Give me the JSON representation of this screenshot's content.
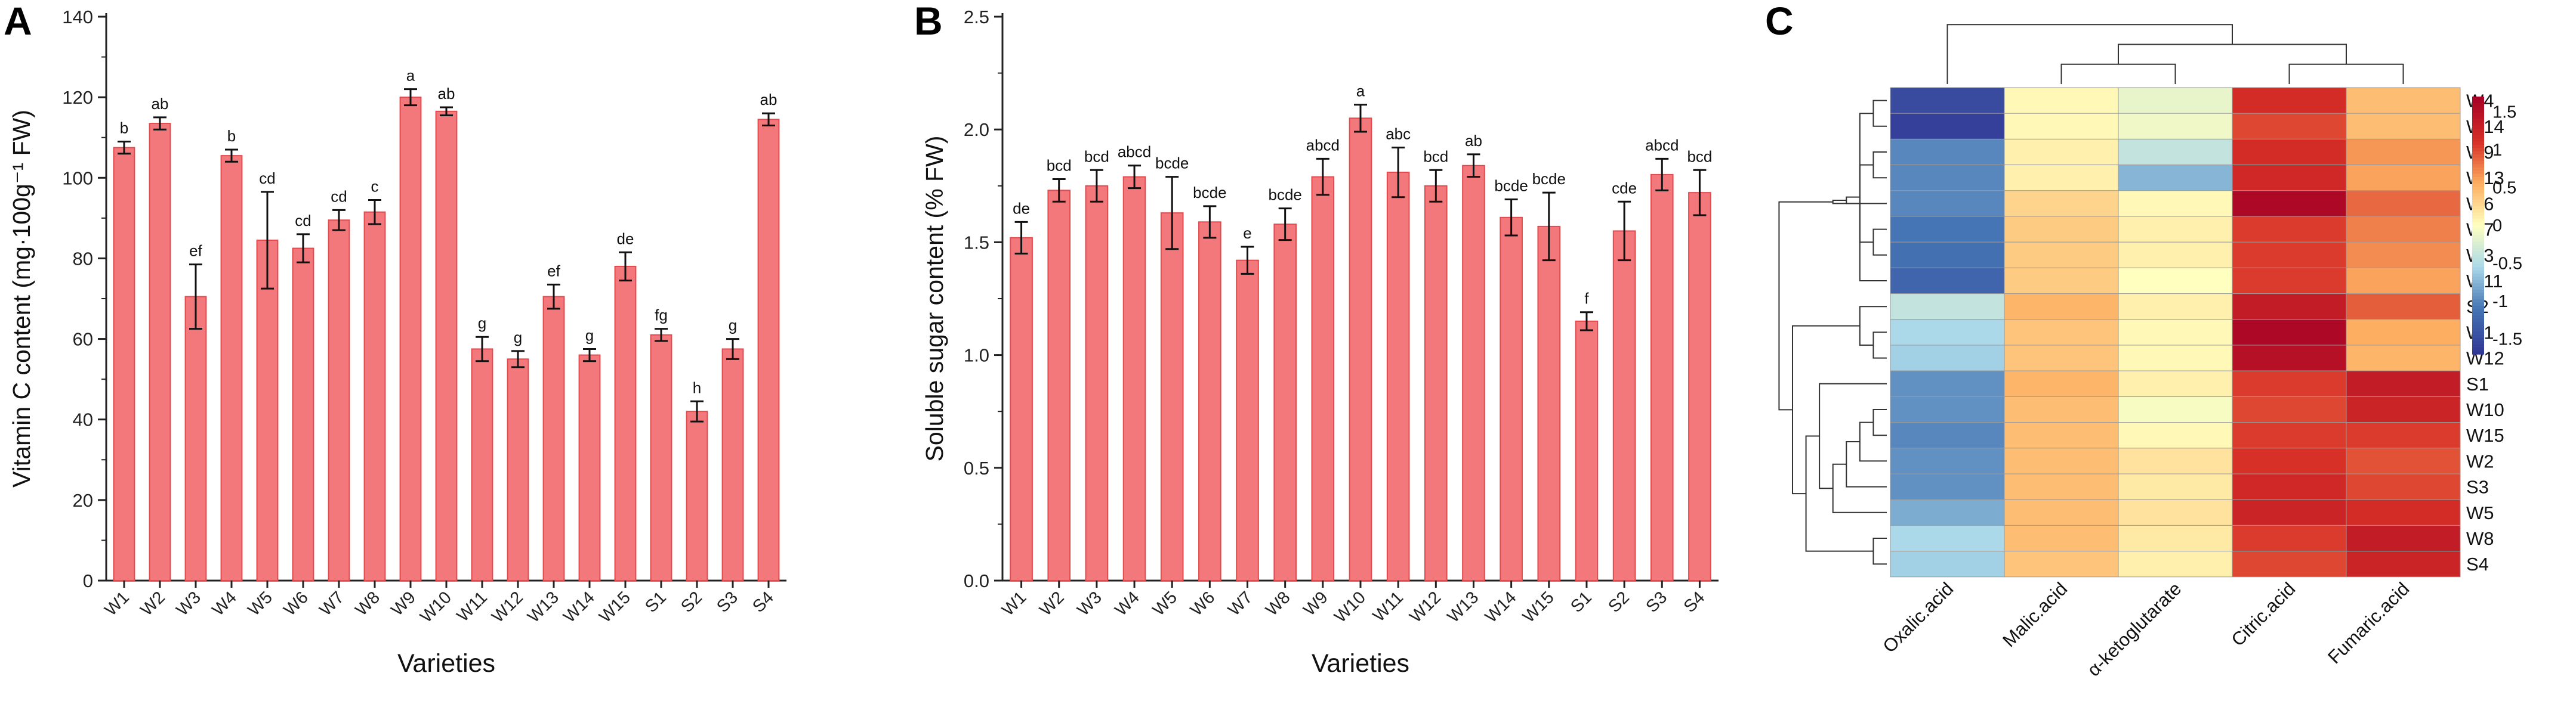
{
  "panels": {
    "a": "A",
    "b": "B",
    "c": "C"
  },
  "colors": {
    "bar_fill": "#f3787b",
    "bar_edge": "#e34a4e"
  },
  "chart_data": [
    {
      "type": "bar",
      "panel": "A",
      "xlabel": "Varieties",
      "ylabel": "Vitamin C content (mg·100g⁻¹ FW)",
      "ylim": [
        0,
        140
      ],
      "yticks": [
        0,
        20,
        40,
        60,
        80,
        100,
        120,
        140
      ],
      "categories": [
        "W1",
        "W2",
        "W3",
        "W4",
        "W5",
        "W6",
        "W7",
        "W8",
        "W9",
        "W10",
        "W11",
        "W12",
        "W13",
        "W14",
        "W15",
        "S1",
        "S2",
        "S3",
        "S4"
      ],
      "values": [
        107.5,
        113.5,
        70.5,
        105.5,
        84.5,
        82.5,
        89.5,
        91.5,
        120.0,
        116.5,
        57.5,
        55.0,
        70.5,
        56.0,
        78.0,
        61.0,
        42.0,
        57.5,
        114.5
      ],
      "errors": [
        1.5,
        1.5,
        8.0,
        1.5,
        12.0,
        3.5,
        2.5,
        3.0,
        2.0,
        1.0,
        3.0,
        2.0,
        3.0,
        1.5,
        3.5,
        1.5,
        2.5,
        2.5,
        1.5
      ],
      "labels": [
        "b",
        "ab",
        "ef",
        "b",
        "cd",
        "cd",
        "cd",
        "c",
        "a",
        "ab",
        "g",
        "g",
        "ef",
        "g",
        "de",
        "fg",
        "h",
        "g",
        "ab"
      ]
    },
    {
      "type": "bar",
      "panel": "B",
      "xlabel": "Varieties",
      "ylabel": "Soluble sugar content (% FW)",
      "ylim": [
        0,
        2.5
      ],
      "yticks": [
        0.0,
        0.5,
        1.0,
        1.5,
        2.0,
        2.5
      ],
      "categories": [
        "W1",
        "W2",
        "W3",
        "W4",
        "W5",
        "W6",
        "W7",
        "W8",
        "W9",
        "W10",
        "W11",
        "W12",
        "W13",
        "W14",
        "W15",
        "S1",
        "S2",
        "S3",
        "S4"
      ],
      "values": [
        1.52,
        1.73,
        1.75,
        1.79,
        1.63,
        1.59,
        1.42,
        1.58,
        1.79,
        2.05,
        1.81,
        1.75,
        1.84,
        1.61,
        1.57,
        1.15,
        1.55,
        1.8,
        1.72
      ],
      "errors": [
        0.07,
        0.05,
        0.07,
        0.05,
        0.16,
        0.07,
        0.06,
        0.07,
        0.08,
        0.06,
        0.11,
        0.07,
        0.05,
        0.08,
        0.15,
        0.04,
        0.13,
        0.07,
        0.1
      ],
      "labels": [
        "de",
        "bcd",
        "bcd",
        "abcd",
        "bcde",
        "bcde",
        "e",
        "bcde",
        "abcd",
        "a",
        "abc",
        "bcd",
        "ab",
        "bcde",
        "bcde",
        "f",
        "cde",
        "abcd",
        "bcd"
      ]
    },
    {
      "type": "heatmap",
      "panel": "C",
      "columns": [
        "Oxalic.acid",
        "Malic.acid",
        "α-ketoglutarate",
        "Citric.acid",
        "Fumaric.acid"
      ],
      "rows": [
        "W4",
        "W14",
        "W9",
        "W13",
        "W6",
        "W7",
        "W3",
        "W11",
        "S2",
        "W1",
        "W12",
        "S1",
        "W10",
        "W15",
        "W2",
        "S3",
        "W5",
        "W8",
        "S4"
      ],
      "values": [
        [
          -1.5,
          0.05,
          -0.15,
          1.15,
          0.45
        ],
        [
          -1.6,
          0.05,
          -0.1,
          1.0,
          0.45
        ],
        [
          -1.0,
          0.1,
          -0.4,
          1.15,
          0.65
        ],
        [
          -1.0,
          0.1,
          -0.75,
          1.2,
          0.6
        ],
        [
          -1.0,
          0.3,
          0.05,
          1.6,
          0.85
        ],
        [
          -1.1,
          0.35,
          0.1,
          1.05,
          0.75
        ],
        [
          -1.15,
          0.35,
          0.1,
          1.05,
          0.7
        ],
        [
          -1.25,
          0.35,
          0.0,
          1.05,
          0.6
        ],
        [
          -0.4,
          0.5,
          0.1,
          1.35,
          0.9
        ],
        [
          -0.55,
          0.4,
          0.05,
          1.6,
          0.55
        ],
        [
          -0.6,
          0.4,
          0.05,
          1.5,
          0.5
        ],
        [
          -0.95,
          0.5,
          0.1,
          1.05,
          1.35
        ],
        [
          -0.95,
          0.45,
          -0.05,
          1.0,
          1.25
        ],
        [
          -1.0,
          0.45,
          0.05,
          1.05,
          1.05
        ],
        [
          -0.95,
          0.45,
          0.2,
          1.1,
          0.95
        ],
        [
          -0.95,
          0.45,
          0.15,
          1.2,
          1.0
        ],
        [
          -0.8,
          0.45,
          0.2,
          1.25,
          1.15
        ],
        [
          -0.55,
          0.45,
          0.15,
          1.05,
          1.35
        ],
        [
          -0.6,
          0.4,
          0.1,
          1.0,
          1.25
        ]
      ],
      "colorbar": {
        "ticks": [
          1.5,
          1,
          0.5,
          0,
          -0.5,
          -1,
          -1.5
        ],
        "labels": [
          "1.5",
          "1",
          "0.5",
          "0",
          "-0.5",
          "-1",
          "-1.5"
        ],
        "range": [
          -1.7,
          1.7
        ]
      },
      "col_tree": [
        [
          3,
          4
        ],
        [
          1,
          2
        ],
        [
          5,
          6
        ],
        [
          0,
          7
        ]
      ],
      "row_tree": [
        [
          0,
          1
        ],
        [
          2,
          3
        ],
        [
          5,
          6
        ],
        [
          19,
          7
        ],
        [
          20,
          21
        ],
        [
          22,
          23
        ],
        [
          4,
          24
        ],
        [
          9,
          10
        ],
        [
          8,
          26
        ],
        [
          12,
          13
        ],
        [
          28,
          14
        ],
        [
          29,
          15
        ],
        [
          30,
          16
        ],
        [
          11,
          31
        ],
        [
          17,
          18
        ],
        [
          32,
          33
        ],
        [
          27,
          34
        ],
        [
          25,
          35
        ]
      ]
    }
  ]
}
